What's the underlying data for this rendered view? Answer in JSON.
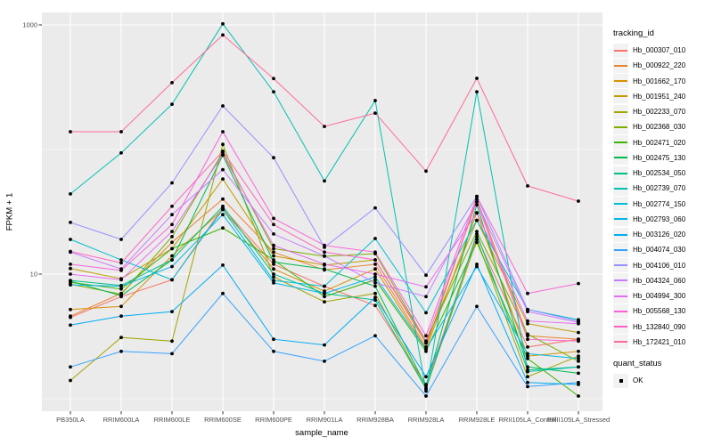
{
  "chart_data": {
    "type": "line",
    "title": "",
    "xlabel": "sample_name",
    "ylabel": "FPKM + 1",
    "y_scale": "log10",
    "ylim": [
      0.79,
      1250
    ],
    "y_ticks_labeled": [
      10,
      1000
    ],
    "y_gridlines_minor": [
      1,
      100
    ],
    "grid": "on",
    "legend_position": "right",
    "legend_title": "tracking_id",
    "quant_legend": {
      "title": "quant_status",
      "ok_label": "OK"
    },
    "panel_bg": "#ebebeb",
    "gridline_color": "#ffffff",
    "point_color": "#000000",
    "categories": [
      "PB350LA",
      "RRIM600LA",
      "RRIM600LE",
      "RRIM600SE",
      "RRIM600PE",
      "RRIM901LA",
      "RRIM928BA",
      "RRIM928LA",
      "RRIM928LE",
      "RRII105LA_Control",
      "RRII105LA_Stressed"
    ],
    "series": [
      {
        "name": "Hb_000307_010",
        "color": "#F8766D",
        "values": [
          4.5,
          6.6,
          9.0,
          34,
          12,
          8.0,
          5.6,
          1.3,
          20,
          2.6,
          3.0
        ]
      },
      {
        "name": "Hb_000922_220",
        "color": "#EA8331",
        "values": [
          4.6,
          7.0,
          18,
          40,
          15,
          10.8,
          12,
          2.6,
          40,
          3.2,
          3.0
        ]
      },
      {
        "name": "Hb_001662_170",
        "color": "#D89000",
        "values": [
          5.2,
          5.5,
          14,
          33,
          11,
          7.3,
          11,
          2.5,
          31,
          2.2,
          2.4
        ]
      },
      {
        "name": "Hb_001951_240",
        "color": "#C09B00",
        "values": [
          11.1,
          9.2,
          16,
          58,
          14,
          11.8,
          13,
          2.8,
          27,
          4.0,
          3.4
        ]
      },
      {
        "name": "Hb_002233_070",
        "color": "#A3A500",
        "values": [
          1.4,
          3.1,
          2.9,
          110,
          9.5,
          6.0,
          7.0,
          1.2,
          19,
          1.5,
          2.2
        ]
      },
      {
        "name": "Hb_002368_030",
        "color": "#7CAE00",
        "values": [
          8.3,
          6.9,
          20,
          95,
          16,
          13.9,
          14.6,
          2.9,
          22,
          3.3,
          2.0
        ]
      },
      {
        "name": "Hb_002471_020",
        "color": "#39B600",
        "values": [
          8.6,
          7.6,
          16,
          23.5,
          13,
          6.6,
          9.0,
          2.4,
          18,
          2.1,
          1.05
        ]
      },
      {
        "name": "Hb_002475_130",
        "color": "#00BB4E",
        "values": [
          8.8,
          6.7,
          13,
          90,
          12.5,
          11,
          8.0,
          1.25,
          36,
          1.8,
          1.6
        ]
      },
      {
        "name": "Hb_002534_050",
        "color": "#00C087",
        "values": [
          8.9,
          8.1,
          13,
          35,
          10,
          7.0,
          6.2,
          1.2,
          21,
          1.7,
          1.8
        ]
      },
      {
        "name": "Hb_002739_070",
        "color": "#00C0B2",
        "values": [
          44,
          94,
          231,
          1020,
          291,
          56,
          247,
          1.15,
          291,
          1.65,
          1.8
        ]
      },
      {
        "name": "Hb_002774_150",
        "color": "#00BFD3",
        "values": [
          19,
          13,
          9.0,
          33,
          8.9,
          8.0,
          19.3,
          4.9,
          27,
          5.2,
          4.3
        ]
      },
      {
        "name": "Hb_002793_060",
        "color": "#00B8E7",
        "values": [
          8.2,
          8.0,
          11.5,
          30,
          8.5,
          7.0,
          9.5,
          2.5,
          11.5,
          2.3,
          2.1
        ]
      },
      {
        "name": "Hb_003126_020",
        "color": "#00ACF4",
        "values": [
          3.9,
          4.6,
          5.0,
          11.8,
          3.0,
          2.7,
          6.5,
          1.5,
          12,
          1.35,
          1.3
        ]
      },
      {
        "name": "Hb_004074_030",
        "color": "#35A2FF",
        "values": [
          1.8,
          2.4,
          2.3,
          7.0,
          2.4,
          2.0,
          3.2,
          1.05,
          5.5,
          1.25,
          1.35
        ]
      },
      {
        "name": "Hb_004106_010",
        "color": "#9590FF",
        "values": [
          26,
          19,
          54,
          224,
          86,
          16.4,
          34,
          9.8,
          42,
          5.2,
          4.2
        ]
      },
      {
        "name": "Hb_004324_060",
        "color": "#C77CFF",
        "values": [
          15,
          11,
          30,
          69,
          21,
          14,
          8.5,
          6.6,
          38,
          5.0,
          4.1
        ]
      },
      {
        "name": "Hb_004994_300",
        "color": "#E76BF3",
        "values": [
          10,
          9.0,
          22,
          91,
          17,
          12,
          10,
          7.9,
          31,
          4.2,
          4.0
        ]
      },
      {
        "name": "Hb_005568_130",
        "color": "#FA62DB",
        "values": [
          12,
          10.7,
          25,
          139,
          28,
          17,
          15,
          3.2,
          42,
          7.0,
          8.4
        ]
      },
      {
        "name": "Hb_132840_090",
        "color": "#FF61C3",
        "values": [
          15.2,
          12.3,
          35,
          97,
          25,
          15,
          13,
          2.9,
          38,
          3.0,
          2.9
        ]
      },
      {
        "name": "Hb_172421_010",
        "color": "#FF6A98",
        "values": [
          139,
          139,
          344,
          830,
          371,
          153,
          196,
          67,
          373,
          51,
          38.5
        ]
      }
    ]
  }
}
